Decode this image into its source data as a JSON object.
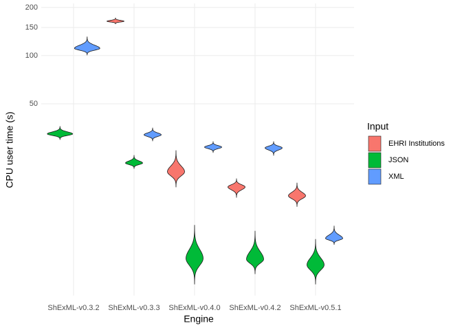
{
  "chart_data": {
    "type": "violin",
    "x_label": "Engine",
    "y_label": "CPU user time (s)",
    "categories": [
      "ShExML-v0.3.2",
      "ShExML-v0.3.3",
      "ShExML-v0.4.0",
      "ShExML-v0.4.2",
      "ShExML-v0.5.1"
    ],
    "legend_title": "Input",
    "legend_position": "right",
    "log_y": true,
    "grid": true,
    "ylim": [
      3.16,
      212
    ],
    "yticks": [
      50,
      100,
      150,
      200
    ],
    "series": [
      {
        "name": "EHRI Institutions",
        "color": "#f8766d",
        "values": [
          null,
          {
            "low": 158,
            "mode": 164,
            "high": 172
          },
          {
            "low": 15.1,
            "mode": 18.8,
            "high": 25.5
          },
          {
            "low": 13.0,
            "mode": 15.1,
            "high": 17.0
          },
          {
            "low": 11.4,
            "mode": 13.3,
            "high": 16.0
          }
        ]
      },
      {
        "name": "JSON",
        "color": "#00ba38",
        "values": [
          {
            "low": 29.9,
            "mode": 32.4,
            "high": 36.1
          },
          {
            "low": 19.7,
            "mode": 21.3,
            "high": 23.8
          },
          {
            "low": 3.73,
            "mode": 5.4,
            "high": 8.7
          },
          {
            "low": 4.33,
            "mode": 5.33,
            "high": 8.0
          },
          {
            "low": 3.73,
            "mode": 4.92,
            "high": 7.1
          }
        ]
      },
      {
        "name": "XML",
        "color": "#619cff",
        "values": [
          {
            "low": 101,
            "mode": 111,
            "high": 131
          },
          {
            "low": 29.3,
            "mode": 32.0,
            "high": 35.3
          },
          {
            "low": 24.8,
            "mode": 26.8,
            "high": 29.0
          },
          {
            "low": 23.8,
            "mode": 26.5,
            "high": 29.0
          },
          {
            "low": 6.6,
            "mode": 7.2,
            "high": 8.6
          }
        ]
      }
    ]
  }
}
